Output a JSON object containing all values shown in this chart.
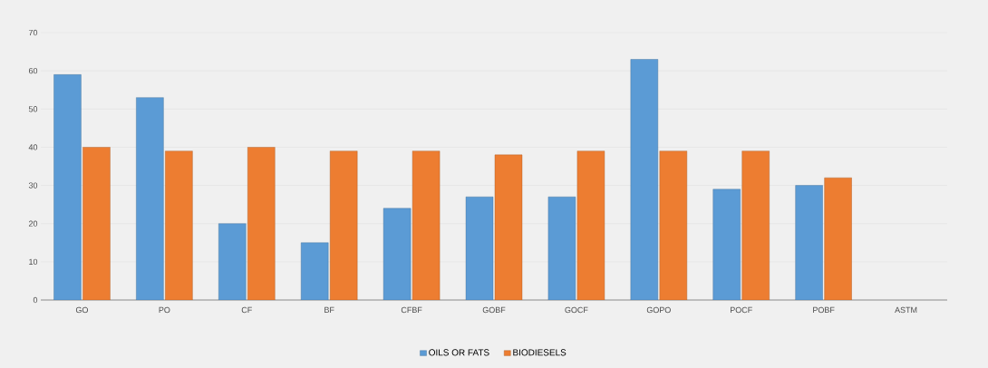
{
  "chart_data": {
    "type": "bar",
    "categories": [
      "GO",
      "PO",
      "CF",
      "BF",
      "CFBF",
      "GOBF",
      "GOCF",
      "GOPO",
      "POCF",
      "POBF",
      "ASTM"
    ],
    "series": [
      {
        "name": "OILS OR FATS",
        "color": "#5b9bd5",
        "values": [
          59,
          53,
          20,
          15,
          24,
          27,
          27,
          63,
          29,
          30,
          null
        ]
      },
      {
        "name": "BIODIESELS",
        "color": "#ed7d31",
        "values": [
          40,
          39,
          40,
          39,
          39,
          38,
          39,
          39,
          39,
          32,
          null
        ]
      }
    ],
    "ylim": [
      0,
      70
    ],
    "yticks": [
      0,
      10,
      20,
      30,
      40,
      50,
      60,
      70
    ],
    "grid": "y",
    "legend": "bottom"
  }
}
